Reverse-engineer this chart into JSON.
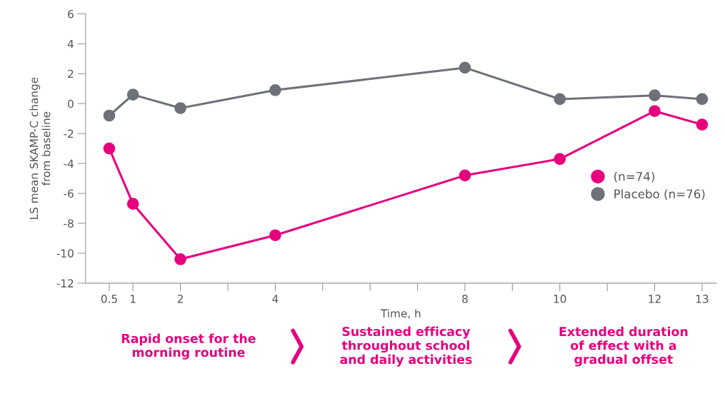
{
  "chart_data": {
    "type": "line",
    "xlabel": "Time, h",
    "ylabel": "LS mean SKAMP-C change\nfrom baseline",
    "x": [
      0.5,
      1,
      2,
      4,
      8,
      10,
      12,
      13
    ],
    "series": [
      {
        "name": "(n=74)",
        "color": "#e6007e",
        "values": [
          -3.0,
          -6.7,
          -10.4,
          -8.8,
          -4.8,
          -3.7,
          -0.5,
          -1.4
        ]
      },
      {
        "name": "Placebo (n=76)",
        "color": "#6d7278",
        "values": [
          -0.8,
          0.6,
          -0.3,
          0.9,
          2.4,
          0.3,
          0.55,
          0.3
        ]
      }
    ],
    "xlim": [
      0,
      13.3
    ],
    "xticks": [
      0.5,
      1,
      2,
      {
        "value": 3,
        "label": null
      },
      4,
      {
        "value": 5,
        "label": null
      },
      {
        "value": 6,
        "label": null
      },
      {
        "value": 7,
        "label": null
      },
      8,
      {
        "value": 9,
        "label": null
      },
      10,
      {
        "value": 11,
        "label": null
      },
      12,
      13
    ],
    "ylim": [
      -12,
      6
    ],
    "yticks": [
      -12,
      -10,
      -8,
      -6,
      -4,
      -2,
      0,
      2,
      4,
      6
    ],
    "grid": false,
    "legend": "right",
    "marker": "circle",
    "line_style": "solid",
    "annotations": [
      "Rapid onset for the\nmorning routine",
      "Sustained efficacy\nthroughout school\nand daily activities",
      "Extended duration\nof effect with a\ngradual offset"
    ]
  }
}
